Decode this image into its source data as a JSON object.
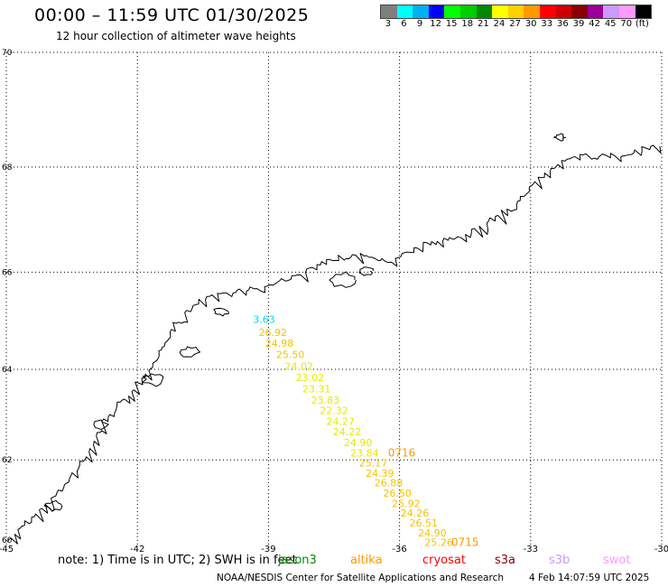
{
  "header": {
    "title": "00:00 – 11:59 UTC 01/30/2025",
    "subtitle": "12 hour collection of altimeter wave heights"
  },
  "legend": {
    "unit": "(ft)",
    "bins": [
      {
        "label": "3",
        "color": "#7f7f7f"
      },
      {
        "label": "6",
        "color": "#00ffff"
      },
      {
        "label": "9",
        "color": "#00b0f0"
      },
      {
        "label": "12",
        "color": "#0000ff"
      },
      {
        "label": "15",
        "color": "#00ff00"
      },
      {
        "label": "18",
        "color": "#00cc00"
      },
      {
        "label": "21",
        "color": "#008800"
      },
      {
        "label": "24",
        "color": "#ffff00"
      },
      {
        "label": "27",
        "color": "#ffd000"
      },
      {
        "label": "30",
        "color": "#ff9900"
      },
      {
        "label": "33",
        "color": "#ff0000"
      },
      {
        "label": "36",
        "color": "#cc0000"
      },
      {
        "label": "39",
        "color": "#880000"
      },
      {
        "label": "42",
        "color": "#990099"
      },
      {
        "label": "45",
        "color": "#cc99ff"
      },
      {
        "label": "70",
        "color": "#ff99ff"
      },
      {
        "label": "",
        "color": "#000000"
      }
    ]
  },
  "map": {
    "lon_range": [
      -45,
      -30
    ],
    "lat_range": [
      60,
      70
    ],
    "lon_ticks": [
      -45,
      -42,
      -39,
      -36,
      -33,
      -30
    ],
    "lon_tick_labels": [
      "-45",
      "-42",
      "-39",
      "-36",
      "-33",
      "-30"
    ],
    "lat_ticks": [
      62,
      64,
      66,
      68,
      70
    ],
    "lat_tick_labels": [
      "62",
      "64",
      "66",
      "68",
      "70"
    ],
    "lat_tick_bottom_label": "60",
    "grid": "dotted"
  },
  "observations": [
    {
      "lat": 65.05,
      "lon": -39.1,
      "value": "3.63",
      "color": "#00d8f0"
    },
    {
      "lat": 64.78,
      "lon": -38.9,
      "value": "26.92",
      "color": "#f2c400"
    },
    {
      "lat": 64.55,
      "lon": -38.75,
      "value": "24.98",
      "color": "#f2c400"
    },
    {
      "lat": 64.32,
      "lon": -38.5,
      "value": "25.50",
      "color": "#f2c400"
    },
    {
      "lat": 64.07,
      "lon": -38.3,
      "value": "24.02",
      "color": "#e8e800"
    },
    {
      "lat": 63.83,
      "lon": -38.05,
      "value": "23.02",
      "color": "#e8e800"
    },
    {
      "lat": 63.58,
      "lon": -37.9,
      "value": "23.31",
      "color": "#e8e800"
    },
    {
      "lat": 63.34,
      "lon": -37.7,
      "value": "23.83",
      "color": "#e8e800"
    },
    {
      "lat": 63.11,
      "lon": -37.5,
      "value": "22.32",
      "color": "#e8e800"
    },
    {
      "lat": 62.87,
      "lon": -37.35,
      "value": "24.27",
      "color": "#e8e800"
    },
    {
      "lat": 62.64,
      "lon": -37.2,
      "value": "24.22",
      "color": "#e8e800"
    },
    {
      "lat": 62.39,
      "lon": -36.95,
      "value": "24.90",
      "color": "#e8e800"
    },
    {
      "lat": 62.16,
      "lon": -36.8,
      "value": "23.84",
      "color": "#e8e800"
    },
    {
      "lat": 61.93,
      "lon": -36.6,
      "value": "25.17",
      "color": "#f2c400"
    },
    {
      "lat": 61.69,
      "lon": -36.45,
      "value": "24.39",
      "color": "#f2c400"
    },
    {
      "lat": 61.47,
      "lon": -36.25,
      "value": "26.88",
      "color": "#f2c400"
    },
    {
      "lat": 61.23,
      "lon": -36.05,
      "value": "26.50",
      "color": "#f2c400"
    },
    {
      "lat": 60.99,
      "lon": -35.85,
      "value": "25.92",
      "color": "#f2c400"
    },
    {
      "lat": 60.76,
      "lon": -35.65,
      "value": "24.26",
      "color": "#f2c400"
    },
    {
      "lat": 60.52,
      "lon": -35.45,
      "value": "26.51",
      "color": "#f2c400"
    },
    {
      "lat": 60.29,
      "lon": -35.25,
      "value": "24.90",
      "color": "#f2c400"
    },
    {
      "lat": 60.05,
      "lon": -35.1,
      "value": "25.26",
      "color": "#f2c400"
    }
  ],
  "time_labels": [
    {
      "lat": 62.16,
      "lon": -35.95,
      "text": "0716",
      "color": "#ff9900"
    },
    {
      "lat": 60.05,
      "lon": -34.5,
      "text": "0715",
      "color": "#ff9900"
    }
  ],
  "coastline_color": "#000000",
  "footer": {
    "note": "note:  1) Time is in UTC;  2) SWH is in feet",
    "credit": "NOAA/NESDIS Center for Satellite Applications and Research",
    "issued": "4 Feb 14:07:59 UTC 2025",
    "satellites": [
      {
        "name": "jason3",
        "color": "#008800"
      },
      {
        "name": "altika",
        "color": "#ff9900"
      },
      {
        "name": "cryosat",
        "color": "#ff0000"
      },
      {
        "name": "s3a",
        "color": "#880000"
      },
      {
        "name": "s3b",
        "color": "#cc99ff"
      },
      {
        "name": "swot",
        "color": "#ff99ff"
      }
    ]
  }
}
